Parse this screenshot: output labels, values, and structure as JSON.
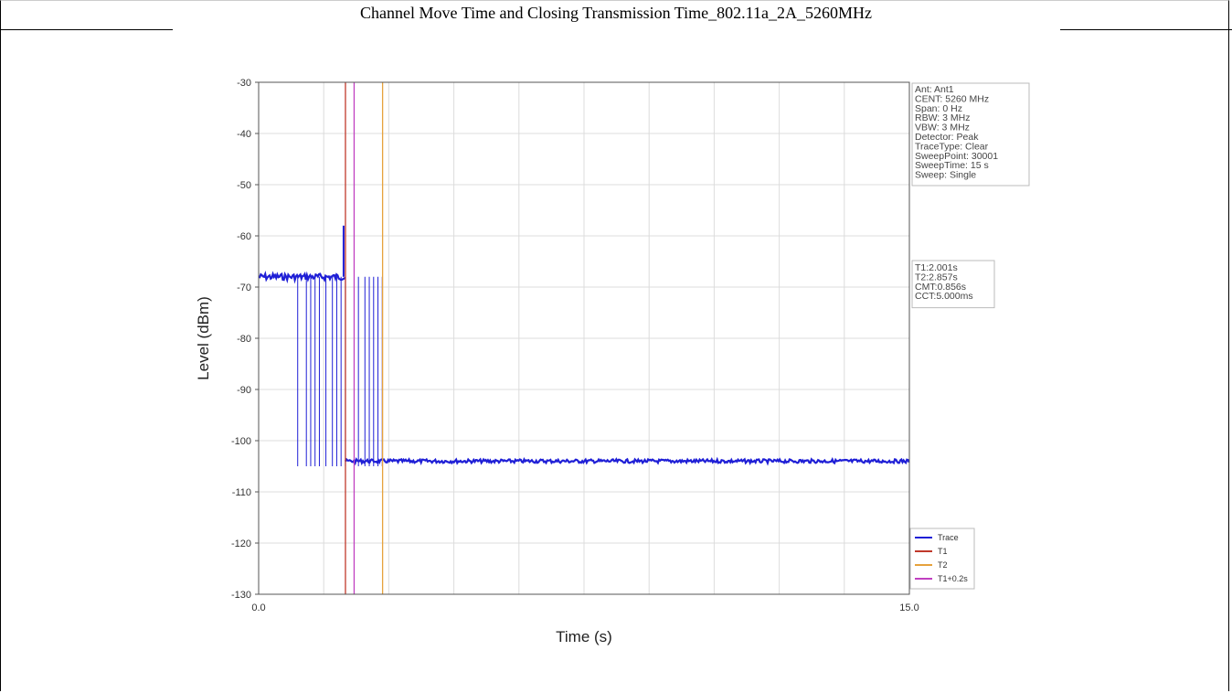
{
  "page": {
    "title": "Channel Move Time and Closing Transmission Time_802.11a_2A_5260MHz"
  },
  "chart_data": {
    "type": "line",
    "xlabel": "Time (s)",
    "ylabel": "Level (dBm)",
    "xlim": [
      0,
      15
    ],
    "ylim": [
      -130,
      -30
    ],
    "x_tick_labels": [
      "0.0",
      "15.0"
    ],
    "y_ticks": [
      -30,
      -40,
      -50,
      -60,
      -70,
      -80,
      -90,
      -100,
      -110,
      -120,
      -130
    ],
    "grid": true,
    "legend_position": "bottom-right",
    "series": [
      {
        "name": "Trace",
        "color": "#1f1fd6",
        "segments": [
          {
            "x_start": 0.0,
            "x_end": 2.0,
            "level": -68
          },
          {
            "x_start": 2.0,
            "x_end": 15.0,
            "level": -104
          }
        ],
        "spike": {
          "x": 2.0,
          "y": -58
        },
        "bursts_x": [
          0.9,
          1.1,
          1.2,
          1.3,
          1.4,
          1.55,
          1.7,
          1.8,
          1.9,
          2.0,
          2.3,
          2.45,
          2.55,
          2.65,
          2.75,
          2.85
        ],
        "burst_top": -68,
        "burst_bottom": -105
      },
      {
        "name": "T1",
        "color": "#c0392b",
        "x": 2.001
      },
      {
        "name": "T2",
        "color": "#e6a23c",
        "x": 2.857
      },
      {
        "name": "T1+0.2s",
        "color": "#c040c0",
        "x": 2.201
      }
    ],
    "info_box": [
      "Ant: Ant1",
      "CENT: 5260 MHz",
      "Span: 0 Hz",
      "RBW: 3 MHz",
      "VBW: 3 MHz",
      "Detector: Peak",
      "TraceType: Clear",
      "SweepPoint: 30001",
      "SweepTime: 15 s",
      "Sweep: Single"
    ],
    "result_box": [
      "T1:2.001s",
      "T2:2.857s",
      "CMT:0.856s",
      "CCT:5.000ms"
    ]
  }
}
